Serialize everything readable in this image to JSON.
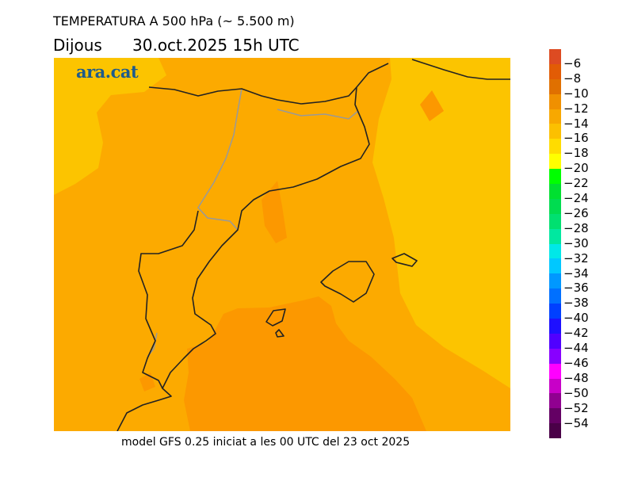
{
  "header": {
    "title": "TEMPERATURA A 500 hPa (~ 5.500 m)",
    "day": "Dijous",
    "datetime": "30.oct.2025 15h UTC"
  },
  "logo": "ara.cat",
  "footer": "model GFS 0.25 iniciat a les 00 UTC del 23 oct 2025",
  "map": {
    "colors": {
      "light": "#fcc400",
      "base": "#fcaa00",
      "dark": "#fc9800",
      "coast": "#222222",
      "border": "#999999"
    }
  },
  "colorbar": {
    "labels": [
      "−6",
      "−8",
      "−10",
      "−12",
      "−14",
      "−16",
      "−18",
      "−20",
      "−22",
      "−24",
      "−26",
      "−28",
      "−30",
      "−32",
      "−34",
      "−36",
      "−38",
      "−40",
      "−42",
      "−44",
      "−46",
      "−48",
      "−50",
      "−52",
      "−54"
    ],
    "colors": [
      "#dd4b22",
      "#e25c05",
      "#e07000",
      "#f09000",
      "#f8a800",
      "#fcc000",
      "#ffdc00",
      "#ffff00",
      "#00ff00",
      "#00e030",
      "#00dc50",
      "#00e070",
      "#00e8a0",
      "#00e8e8",
      "#00c8ff",
      "#0098ff",
      "#0070ff",
      "#0040ff",
      "#1e10ff",
      "#5000ff",
      "#8800ff",
      "#ff00ff",
      "#c800c8",
      "#900090",
      "#640064",
      "#4a0048"
    ]
  }
}
